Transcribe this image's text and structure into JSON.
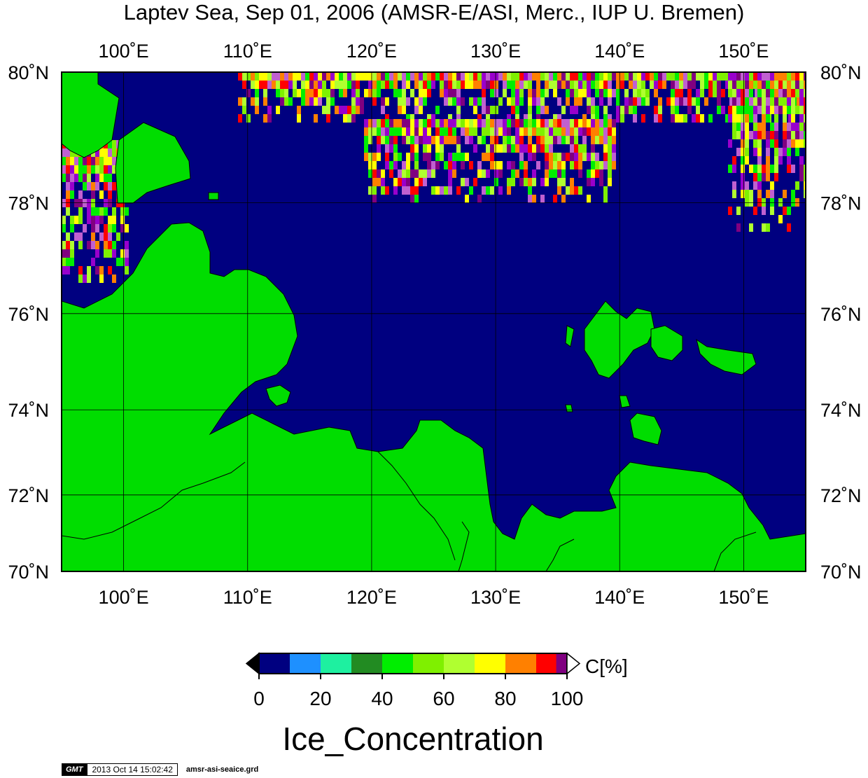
{
  "title": "Laptev Sea, Sep 01, 2006 (AMSR-E/ASI, Merc., IUP U. Bremen)",
  "map": {
    "lon_ticks": [
      "100˚E",
      "110˚E",
      "120˚E",
      "130˚E",
      "140˚E",
      "150˚E"
    ],
    "lat_ticks": [
      "80˚N",
      "78˚N",
      "76˚N",
      "74˚N",
      "72˚N",
      "70˚N"
    ],
    "extent": {
      "lon": [
        95,
        155
      ],
      "lat": [
        70,
        80
      ]
    },
    "projection": "Mercator",
    "colors": {
      "water": "#000080",
      "land": "#00dd00",
      "coast": "#000000"
    }
  },
  "colorbar": {
    "unit_label": "C[%]",
    "tick_labels": [
      "0",
      "20",
      "40",
      "60",
      "80",
      "100"
    ],
    "title": "Ice_Concentration",
    "colors": [
      "#000080",
      "#1e90ff",
      "#1ef0a0",
      "#228b22",
      "#00ee00",
      "#7ff000",
      "#b0ff30",
      "#ffff00",
      "#ff8000",
      "#ff0000",
      "#c060d0",
      "#9900cc",
      "#800080"
    ],
    "range": [
      0,
      100
    ],
    "step": 10
  },
  "footer": {
    "logo": "GMT",
    "timestamp": "2013 Oct 14 15:02:42",
    "filename": "amsr-asi-seaice.grd"
  }
}
